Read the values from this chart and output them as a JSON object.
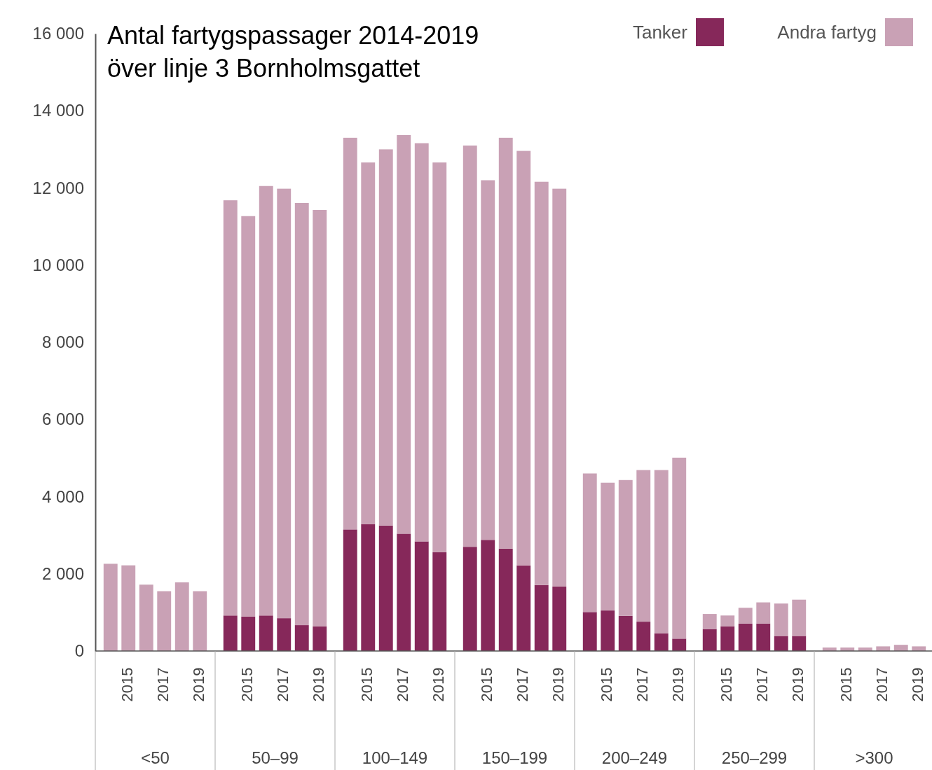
{
  "chart_data": {
    "type": "bar",
    "stacked": true,
    "title": "Antal fartygspassager 2014-2019\növer linje 3 Bornholmsgattet",
    "categories": [
      null,
      "2015",
      null,
      "2017",
      null,
      "2019",
      null,
      "2015",
      null,
      "2017",
      null,
      "2019",
      null,
      "2015",
      null,
      "2017",
      null,
      "2019",
      null,
      "2015",
      null,
      "2017",
      null,
      "2019",
      null,
      "2015",
      null,
      "2017",
      null,
      "2019",
      null,
      "2015",
      null,
      "2017",
      null,
      "2019",
      null,
      "2015",
      null,
      "2017",
      null,
      "2019"
    ],
    "annotations": [
      "<50",
      "50–99",
      "100–149",
      "150–199",
      "200–249",
      "250–299",
      ">300"
    ],
    "series": [
      {
        "name": "Tanker",
        "color": "#86285a",
        "values": [
          null,
          0,
          0,
          0,
          0,
          0,
          920,
          890,
          920,
          850,
          670,
          640,
          3150,
          3290,
          3250,
          3040,
          2840,
          2560,
          2700,
          2880,
          2650,
          2220,
          1710,
          1670,
          1010,
          1050,
          910,
          760,
          460,
          320,
          570,
          640,
          710,
          710,
          390,
          390,
          0,
          0,
          0,
          0,
          0,
          0
        ]
      },
      {
        "name": "Andra fartyg",
        "color": "#c9a1b5",
        "values": [
          2260,
          2220,
          1720,
          1550,
          1780,
          1550,
          10760,
          10380,
          11130,
          11130,
          10940,
          10790,
          10150,
          9370,
          9750,
          10330,
          10320,
          10100,
          10400,
          9320,
          10650,
          10740,
          10450,
          10310,
          3590,
          3310,
          3520,
          3930,
          4230,
          4690,
          390,
          280,
          410,
          550,
          840,
          940,
          90,
          90,
          90,
          120,
          160,
          120
        ]
      }
    ],
    "ylim": [
      0,
      16000
    ],
    "yticks": [
      {
        "value": 0,
        "label": "0"
      },
      {
        "value": 2000,
        "label": "2 000"
      },
      {
        "value": 4000,
        "label": "4 000"
      },
      {
        "value": 6000,
        "label": "6 000"
      },
      {
        "value": 8000,
        "label": "8 000"
      },
      {
        "value": 10000,
        "label": "10 000"
      },
      {
        "value": 12000,
        "label": "12 000"
      },
      {
        "value": 14000,
        "label": "14 000"
      },
      {
        "value": 16000,
        "label": "16 000"
      }
    ],
    "legend": "top right",
    "grid": false
  }
}
